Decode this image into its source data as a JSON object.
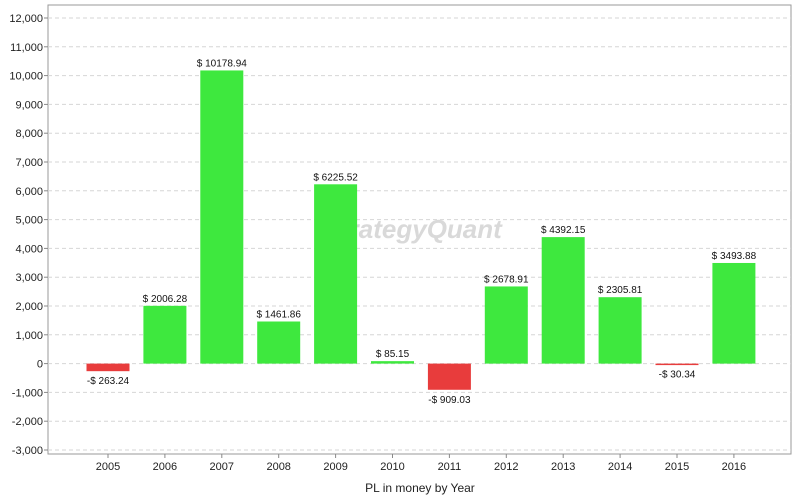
{
  "watermark": "trategyQuant",
  "colors": {
    "positive": "#3ee83e",
    "negative": "#e83c3c",
    "grid": "#d6d6d6",
    "axis": "#888888"
  },
  "chart_data": {
    "type": "bar",
    "title": "",
    "xlabel": "PL in money by Year",
    "ylabel": "",
    "categories": [
      "2005",
      "2006",
      "2007",
      "2008",
      "2009",
      "2010",
      "2011",
      "2012",
      "2013",
      "2014",
      "2015",
      "2016"
    ],
    "values": [
      -263.24,
      2006.28,
      10178.94,
      1461.86,
      6225.52,
      85.15,
      -909.03,
      2678.91,
      4392.15,
      2305.81,
      -30.34,
      3493.88
    ],
    "data_labels": [
      "-$ 263.24",
      "$ 2006.28",
      "$ 10178.94",
      "$ 1461.86",
      "$ 6225.52",
      "$ 85.15",
      "-$ 909.03",
      "$ 2678.91",
      "$ 4392.15",
      "$ 2305.81",
      "-$ 30.34",
      "$ 3493.88"
    ],
    "ylim": [
      -3000,
      12000
    ],
    "y_ticks": [
      -3000,
      -2000,
      -1000,
      0,
      1000,
      2000,
      3000,
      4000,
      5000,
      6000,
      7000,
      8000,
      9000,
      10000,
      11000,
      12000
    ],
    "y_tick_labels": [
      "-3,000",
      "-2,000",
      "-1,000",
      "0",
      "1,000",
      "2,000",
      "3,000",
      "4,000",
      "5,000",
      "6,000",
      "7,000",
      "8,000",
      "9,000",
      "10,000",
      "11,000",
      "12,000"
    ],
    "grid": true,
    "legend": "none"
  }
}
